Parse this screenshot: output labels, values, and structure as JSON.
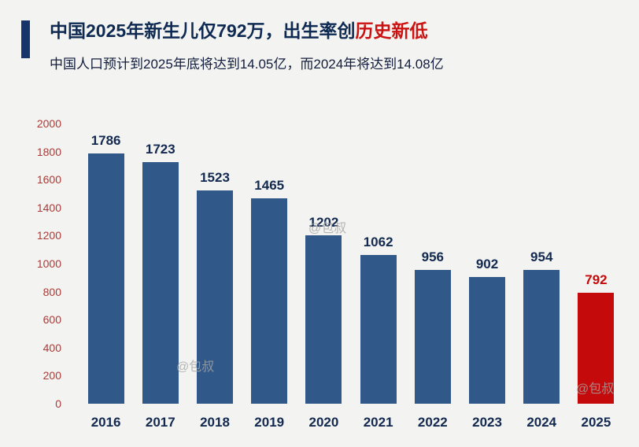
{
  "header": {
    "title_prefix": "中国2025年新生儿仅792万，出生率创",
    "title_highlight": "历史新低",
    "subtitle": "中国人口预计到2025年底将达到14.05亿，而2024年将达到14.08亿"
  },
  "watermark": "@包叔",
  "colors": {
    "bg": "#f3f4f1",
    "accent": "#16356b",
    "title": "#0e2a52",
    "subtitle": "#121c3c",
    "highlight_text": "#cc1111",
    "bar": "#30598a",
    "bar_highlight": "#c40a0a",
    "ytick": "#a83a38",
    "xtick": "#13294f",
    "value_label": "#13294f",
    "watermark": "#a6a6a6"
  },
  "chart_data": {
    "type": "bar",
    "title": "中国2025年新生儿仅792万，出生率创历史新低",
    "subtitle": "中国人口预计到2025年底将达到14.05亿，而2024年将达到14.08亿",
    "categories": [
      "2016",
      "2017",
      "2018",
      "2019",
      "2020",
      "2021",
      "2022",
      "2023",
      "2024",
      "2025"
    ],
    "values": [
      1786,
      1723,
      1523,
      1465,
      1202,
      1062,
      956,
      902,
      954,
      792
    ],
    "highlight_index": 9,
    "xlabel": "",
    "ylabel": "",
    "ylim": [
      0,
      2000
    ],
    "yticks": [
      0,
      200,
      400,
      600,
      800,
      1000,
      1200,
      1400,
      1600,
      1800,
      2000
    ],
    "grid": false,
    "legend": false
  }
}
